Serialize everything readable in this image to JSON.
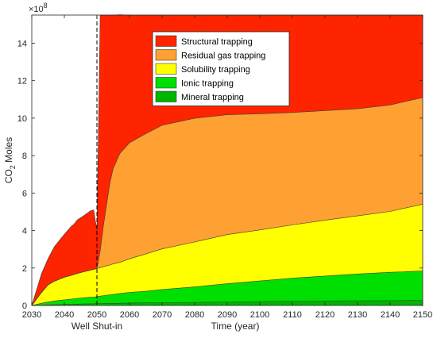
{
  "chart_data": {
    "type": "area",
    "stacked": true,
    "xlabel": "Time (year)",
    "ylabel_main": "CO",
    "ylabel_sub": "2",
    "ylabel_rest": " Moles",
    "y_exponent_base": "×10",
    "y_exponent_power": "8",
    "xlim": [
      2030,
      2150
    ],
    "ylim": [
      0,
      15.5
    ],
    "y_scale_factor": 100000000,
    "x_ticks": [
      2030,
      2040,
      2050,
      2060,
      2070,
      2080,
      2090,
      2100,
      2110,
      2120,
      2130,
      2140,
      2150
    ],
    "y_ticks": [
      0,
      2,
      4,
      6,
      8,
      10,
      12,
      14
    ],
    "grid": false,
    "legend_position": "top-center",
    "annotation": {
      "x": 2050,
      "label": "Well Shut-in",
      "style": "dashed"
    },
    "x": [
      2030,
      2033,
      2035,
      2037,
      2040,
      2042,
      2043,
      2044,
      2046,
      2048,
      2049,
      2050,
      2051,
      2052,
      2053,
      2054,
      2055,
      2057,
      2060,
      2065,
      2070,
      2080,
      2090,
      2100,
      2110,
      2120,
      2130,
      2140,
      2150
    ],
    "series": [
      {
        "name": "Mineral trapping",
        "color": "#00b400",
        "values": [
          0,
          0.02,
          0.03,
          0.04,
          0.05,
          0.06,
          0.06,
          0.07,
          0.08,
          0.09,
          0.09,
          0.1,
          0.1,
          0.1,
          0.11,
          0.11,
          0.11,
          0.12,
          0.13,
          0.14,
          0.15,
          0.17,
          0.19,
          0.21,
          0.23,
          0.24,
          0.25,
          0.26,
          0.27
        ]
      },
      {
        "name": "Ionic trapping",
        "color": "#00e000",
        "values": [
          0,
          0.1,
          0.15,
          0.2,
          0.25,
          0.28,
          0.3,
          0.31,
          0.33,
          0.35,
          0.36,
          0.37,
          0.4,
          0.42,
          0.44,
          0.46,
          0.48,
          0.52,
          0.57,
          0.62,
          0.7,
          0.82,
          0.97,
          1.1,
          1.23,
          1.33,
          1.43,
          1.51,
          1.57
        ]
      },
      {
        "name": "Solubility trapping",
        "color": "#ffff00",
        "values": [
          0,
          0.58,
          0.92,
          1.06,
          1.21,
          1.26,
          1.29,
          1.33,
          1.39,
          1.45,
          1.48,
          1.5,
          1.52,
          1.55,
          1.57,
          1.59,
          1.63,
          1.66,
          1.79,
          1.99,
          2.17,
          2.4,
          2.62,
          2.72,
          2.84,
          2.98,
          3.1,
          3.25,
          3.57
        ]
      },
      {
        "name": "Residual gas trapping",
        "color": "#ffa033",
        "values": [
          0,
          0,
          0,
          0,
          0,
          0,
          0,
          0,
          0,
          0,
          0,
          0,
          0.9,
          2.2,
          3.3,
          4.4,
          5.1,
          5.8,
          6.2,
          6.42,
          6.6,
          6.6,
          6.4,
          6.2,
          6.0,
          5.85,
          5.72,
          5.68,
          5.69
        ]
      },
      {
        "name": "Structural trapping",
        "color": "#ff2400",
        "values": [
          0,
          1.0,
          1.4,
          1.85,
          2.29,
          2.6,
          2.7,
          2.86,
          3.0,
          3.16,
          3.17,
          2.03,
          12.58,
          11.23,
          10.08,
          8.94,
          8.18,
          7.42,
          6.81,
          6.33,
          5.88,
          5.51,
          5.32,
          5.27,
          5.2,
          5.1,
          5.0,
          4.8,
          4.4
        ]
      }
    ]
  }
}
